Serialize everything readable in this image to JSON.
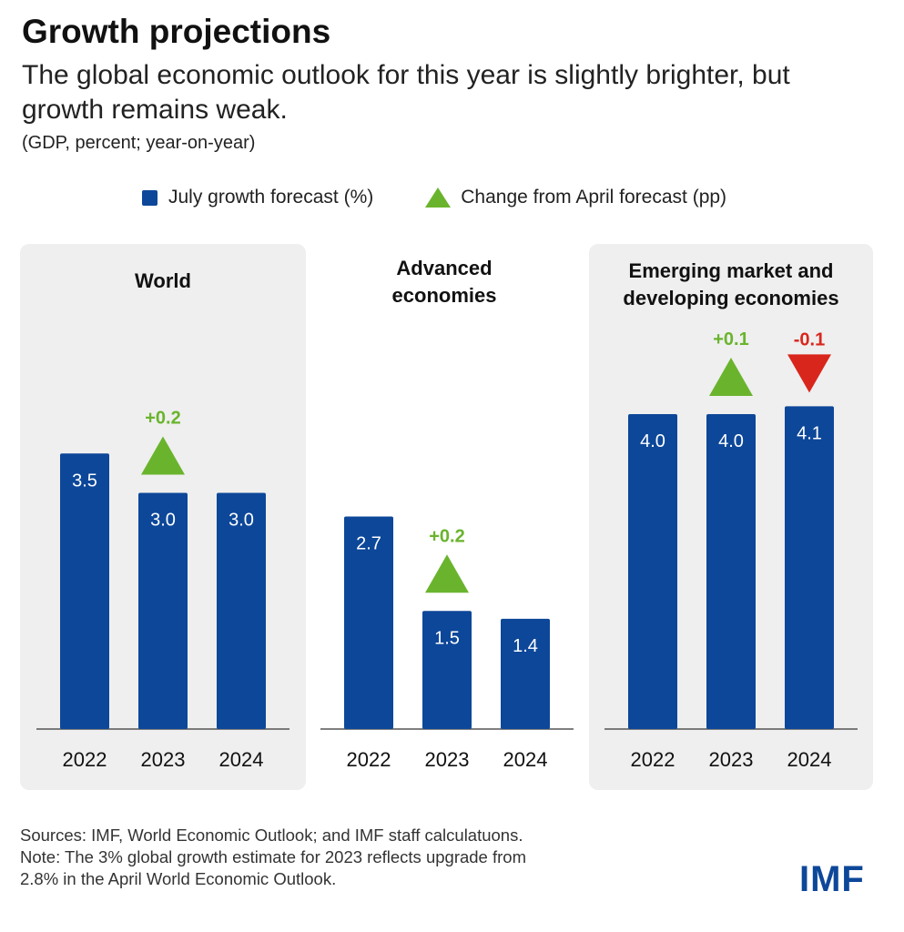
{
  "title": "Growth projections",
  "subtitle": "The global economic outlook for this year is slightly brighter, but growth remains weak.",
  "units": "(GDP, percent; year-on-year)",
  "legend": {
    "forecast": "July growth forecast (%)",
    "change": "Change from April forecast (pp)"
  },
  "colors": {
    "bar": "#0d4799",
    "up": "#6ab42d",
    "down": "#d9261c",
    "panel": "#efefef"
  },
  "chart_data": [
    {
      "type": "bar",
      "title": "World",
      "categories": [
        "2022",
        "2023",
        "2024"
      ],
      "values": [
        3.5,
        3.0,
        3.0
      ],
      "value_labels": [
        "3.5",
        "3.0",
        "3.0"
      ],
      "changes": [
        null,
        0.2,
        null
      ],
      "change_labels": [
        null,
        "+0.2",
        null
      ],
      "ylim": [
        0,
        4.1
      ]
    },
    {
      "type": "bar",
      "title": "Advanced economies",
      "categories": [
        "2022",
        "2023",
        "2024"
      ],
      "values": [
        2.7,
        1.5,
        1.4
      ],
      "value_labels": [
        "2.7",
        "1.5",
        "1.4"
      ],
      "changes": [
        null,
        0.2,
        null
      ],
      "change_labels": [
        null,
        "+0.2",
        null
      ],
      "ylim": [
        0,
        4.1
      ]
    },
    {
      "type": "bar",
      "title": "Emerging market and developing economies",
      "categories": [
        "2022",
        "2023",
        "2024"
      ],
      "values": [
        4.0,
        4.0,
        4.1
      ],
      "value_labels": [
        "4.0",
        "4.0",
        "4.1"
      ],
      "changes": [
        null,
        0.1,
        -0.1
      ],
      "change_labels": [
        null,
        "+0.1",
        "-0.1"
      ],
      "ylim": [
        0,
        4.1
      ]
    }
  ],
  "footer": {
    "sources": "Sources: IMF, World Economic Outlook; and IMF staff calculatuons.",
    "note_line1": "Note: The 3% global growth estimate for 2023 reflects upgrade from",
    "note_line2": "2.8% in the April World Economic Outlook."
  },
  "logo": "IMF"
}
